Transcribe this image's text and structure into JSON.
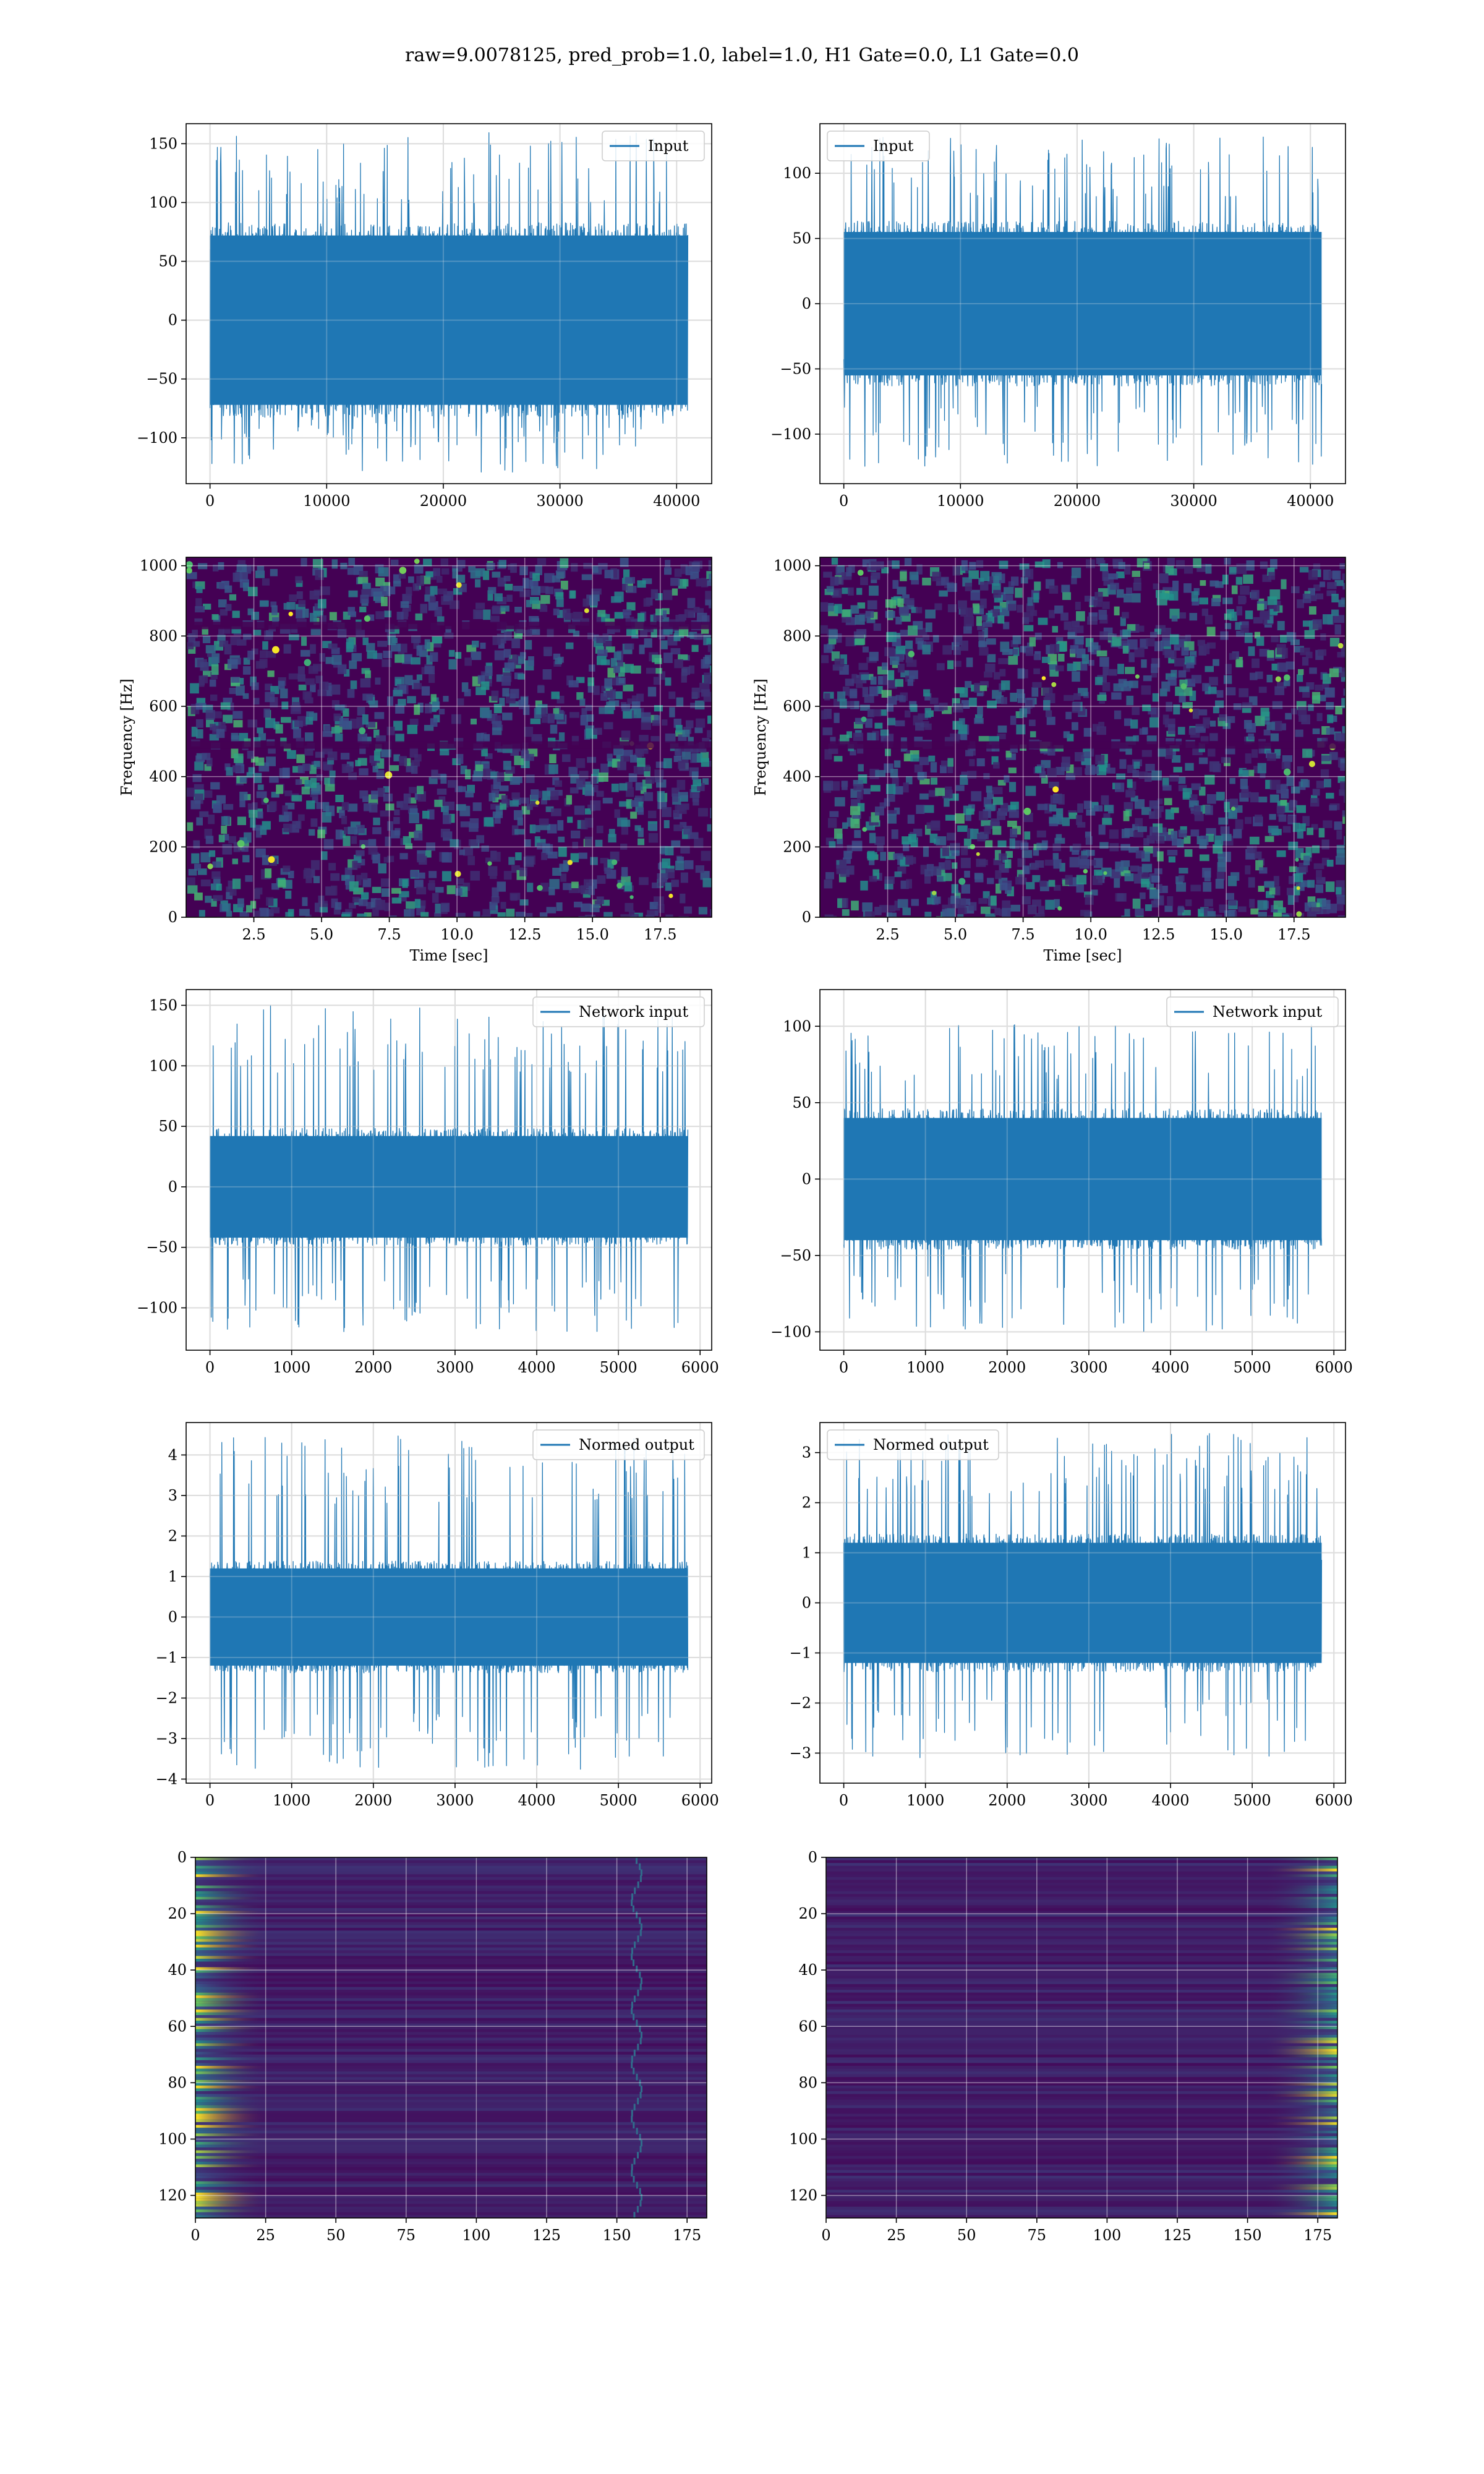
{
  "figure": {
    "title": "raw=9.0078125, pred_prob=1.0, label=1.0, H1 Gate=0.0, L1 Gate=0.0"
  },
  "colors": {
    "line": "#1f77b4",
    "grid": "#d9d9d9",
    "viridis_dark": "#440154",
    "viridis_mid": "#3b528b",
    "viridis_teal": "#21918c",
    "viridis_green": "#5ec962",
    "viridis_yellow": "#fde725"
  },
  "chart_data": [
    {
      "id": "input-h1",
      "type": "line",
      "legend": "Input",
      "legend_loc": "upper right",
      "x": [
        0,
        40960
      ],
      "envelope": {
        "core": [
          -72,
          72
        ],
        "peaks": [
          -130,
          160
        ]
      },
      "xlim": [
        -2048,
        43008
      ],
      "ylim": [
        -139,
        167
      ],
      "xticks": [
        0,
        10000,
        20000,
        30000,
        40000
      ],
      "xticklabels": [
        "0",
        "10000",
        "20000",
        "30000",
        "40000"
      ],
      "yticks": [
        -100,
        -50,
        0,
        50,
        100,
        150
      ],
      "yticklabels": [
        "−100",
        "−50",
        "0",
        "50",
        "100",
        "150"
      ],
      "xlabel": "",
      "ylabel": "",
      "grid": true
    },
    {
      "id": "input-l1",
      "type": "line",
      "legend": "Input",
      "legend_loc": "upper left",
      "x": [
        0,
        40960
      ],
      "envelope": {
        "core": [
          -55,
          55
        ],
        "peaks": [
          -125,
          128
        ]
      },
      "xlim": [
        -2048,
        43008
      ],
      "ylim": [
        -138,
        138
      ],
      "xticks": [
        0,
        10000,
        20000,
        30000,
        40000
      ],
      "xticklabels": [
        "0",
        "10000",
        "20000",
        "30000",
        "40000"
      ],
      "yticks": [
        -100,
        -50,
        0,
        50,
        100
      ],
      "yticklabels": [
        "−100",
        "−50",
        "0",
        "50",
        "100"
      ],
      "xlabel": "",
      "ylabel": "",
      "grid": true
    },
    {
      "id": "spec-h1",
      "type": "heatmap",
      "colormap": "viridis",
      "xlim": [
        0,
        19.4
      ],
      "ylim": [
        0,
        1024
      ],
      "xticks": [
        2.5,
        5.0,
        7.5,
        10.0,
        12.5,
        15.0,
        17.5
      ],
      "xticklabels": [
        "2.5",
        "5.0",
        "7.5",
        "10.0",
        "12.5",
        "15.0",
        "17.5"
      ],
      "yticks": [
        0,
        200,
        400,
        600,
        800,
        1000
      ],
      "yticklabels": [
        "0",
        "200",
        "400",
        "600",
        "800",
        "1000"
      ],
      "xlabel": "Time [sec]",
      "ylabel": "Frequency [Hz]",
      "grid": true,
      "dark_bands_hz": [
        490,
        830
      ]
    },
    {
      "id": "spec-l1",
      "type": "heatmap",
      "colormap": "viridis",
      "xlim": [
        0,
        19.4
      ],
      "ylim": [
        0,
        1024
      ],
      "xticks": [
        2.5,
        5.0,
        7.5,
        10.0,
        12.5,
        15.0,
        17.5
      ],
      "xticklabels": [
        "2.5",
        "5.0",
        "7.5",
        "10.0",
        "12.5",
        "15.0",
        "17.5"
      ],
      "yticks": [
        0,
        200,
        400,
        600,
        800,
        1000
      ],
      "yticklabels": [
        "0",
        "200",
        "400",
        "600",
        "800",
        "1000"
      ],
      "xlabel": "Time [sec]",
      "ylabel": "Frequency [Hz]",
      "grid": true,
      "dark_bands_hz": [
        490
      ]
    },
    {
      "id": "net-h1",
      "type": "line",
      "legend": "Network input",
      "legend_loc": "upper right",
      "x": [
        0,
        5850
      ],
      "envelope": {
        "core": [
          -42,
          42
        ],
        "peaks": [
          -120,
          150
        ]
      },
      "xlim": [
        -292,
        6142
      ],
      "ylim": [
        -135,
        163
      ],
      "xticks": [
        0,
        1000,
        2000,
        3000,
        4000,
        5000,
        6000
      ],
      "xticklabels": [
        "0",
        "1000",
        "2000",
        "3000",
        "4000",
        "5000",
        "6000"
      ],
      "yticks": [
        -100,
        -50,
        0,
        50,
        100,
        150
      ],
      "yticklabels": [
        "−100",
        "−50",
        "0",
        "50",
        "100",
        "150"
      ],
      "xlabel": "",
      "ylabel": "",
      "grid": true
    },
    {
      "id": "net-l1",
      "type": "line",
      "legend": "Network input",
      "legend_loc": "upper right",
      "x": [
        0,
        5850
      ],
      "envelope": {
        "core": [
          -40,
          40
        ],
        "peaks": [
          -100,
          102
        ]
      },
      "xlim": [
        -292,
        6142
      ],
      "ylim": [
        -112,
        124
      ],
      "xticks": [
        0,
        1000,
        2000,
        3000,
        4000,
        5000,
        6000
      ],
      "xticklabels": [
        "0",
        "1000",
        "2000",
        "3000",
        "4000",
        "5000",
        "6000"
      ],
      "yticks": [
        -100,
        -50,
        0,
        50,
        100
      ],
      "yticklabels": [
        "−100",
        "−50",
        "0",
        "50",
        "100"
      ],
      "xlabel": "",
      "ylabel": "",
      "grid": true
    },
    {
      "id": "norm-h1",
      "type": "line",
      "legend": "Normed output",
      "legend_loc": "upper right",
      "x": [
        0,
        5850
      ],
      "envelope": {
        "core": [
          -1.2,
          1.2
        ],
        "peaks": [
          -3.8,
          4.5
        ]
      },
      "xlim": [
        -292,
        6142
      ],
      "ylim": [
        -4.1,
        4.8
      ],
      "xticks": [
        0,
        1000,
        2000,
        3000,
        4000,
        5000,
        6000
      ],
      "xticklabels": [
        "0",
        "1000",
        "2000",
        "3000",
        "4000",
        "5000",
        "6000"
      ],
      "yticks": [
        -4,
        -3,
        -2,
        -1,
        0,
        1,
        2,
        3,
        4
      ],
      "yticklabels": [
        "−4",
        "−3",
        "−2",
        "−1",
        "0",
        "1",
        "2",
        "3",
        "4"
      ],
      "xlabel": "",
      "ylabel": "",
      "grid": true
    },
    {
      "id": "norm-l1",
      "type": "line",
      "legend": "Normed output",
      "legend_loc": "upper left",
      "x": [
        0,
        5850
      ],
      "envelope": {
        "core": [
          -1.2,
          1.2
        ],
        "peaks": [
          -3.1,
          3.4
        ]
      },
      "xlim": [
        -292,
        6142
      ],
      "ylim": [
        -3.6,
        3.6
      ],
      "xticks": [
        0,
        1000,
        2000,
        3000,
        4000,
        5000,
        6000
      ],
      "xticklabels": [
        "0",
        "1000",
        "2000",
        "3000",
        "4000",
        "5000",
        "6000"
      ],
      "yticks": [
        -3,
        -2,
        -1,
        0,
        1,
        2,
        3
      ],
      "yticklabels": [
        "−3",
        "−2",
        "−1",
        "0",
        "1",
        "2",
        "3"
      ],
      "xlabel": "",
      "ylabel": "",
      "grid": true
    },
    {
      "id": "feat-h1",
      "type": "heatmap",
      "colormap": "viridis",
      "xlim": [
        0,
        182
      ],
      "ylim": [
        128,
        0
      ],
      "xticks": [
        0,
        25,
        50,
        75,
        100,
        125,
        150,
        175
      ],
      "xticklabels": [
        "0",
        "25",
        "50",
        "75",
        "100",
        "125",
        "150",
        "175"
      ],
      "yticks": [
        0,
        20,
        40,
        60,
        80,
        100,
        120
      ],
      "yticklabels": [
        "0",
        "20",
        "40",
        "60",
        "80",
        "100",
        "120"
      ],
      "xlabel": "",
      "ylabel": "",
      "grid": true,
      "bright_region": "left"
    },
    {
      "id": "feat-l1",
      "type": "heatmap",
      "colormap": "viridis",
      "xlim": [
        0,
        182
      ],
      "ylim": [
        128,
        0
      ],
      "xticks": [
        0,
        25,
        50,
        75,
        100,
        125,
        150,
        175
      ],
      "xticklabels": [
        "0",
        "25",
        "50",
        "75",
        "100",
        "125",
        "150",
        "175"
      ],
      "yticks": [
        0,
        20,
        40,
        60,
        80,
        100,
        120
      ],
      "yticklabels": [
        "0",
        "20",
        "40",
        "60",
        "80",
        "100",
        "120"
      ],
      "xlabel": "",
      "ylabel": "",
      "grid": true,
      "bright_region": "right"
    }
  ]
}
